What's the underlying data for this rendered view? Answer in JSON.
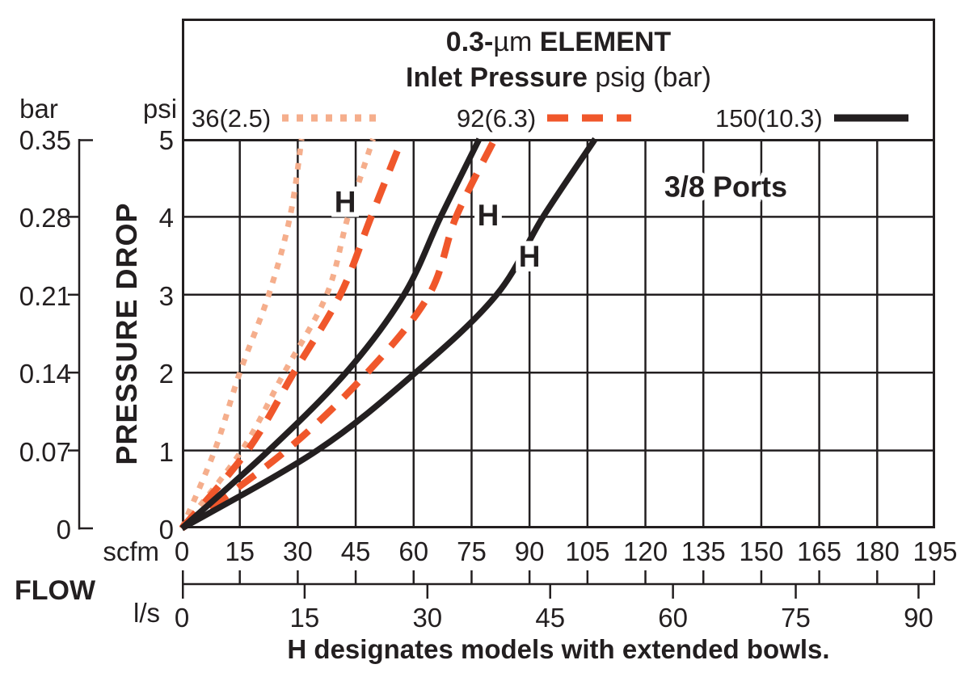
{
  "chart_box": {
    "title_part1": "0.3-",
    "title_mu": "µm",
    "title_part2": " ELEMENT",
    "subtitle_bold": "Inlet Pressure",
    "subtitle_rest": " psig (bar)"
  },
  "legend": {
    "items": [
      {
        "label": "36(2.5)",
        "style": "dotted",
        "color": "#F5AE8C",
        "swatch_len": 116
      },
      {
        "label": "92(6.3)",
        "style": "dashed",
        "color": "#F0572B",
        "swatch_len": 104
      },
      {
        "label": "150(10.3)",
        "style": "solid",
        "color": "#231F20",
        "swatch_len": 92
      }
    ]
  },
  "y_axis": {
    "bar_header": "bar",
    "psi_header": "psi",
    "axis_title": "PRESSURE DROP",
    "bar_labels": [
      "0.35",
      "0.28",
      "0.21",
      "0.14",
      "0.07",
      "0"
    ],
    "psi_labels": [
      "5",
      "4",
      "3",
      "2",
      "1",
      "0"
    ]
  },
  "x_axis": {
    "scfm_header": "scfm",
    "flow_label": "FLOW",
    "ls_header": "l/s"
  },
  "note": "H designates models with extended bowls.",
  "colors": {
    "ink": "#231F20",
    "dotted_series": "#F5AE8C",
    "dashed_series": "#F0572B"
  },
  "chart_data": {
    "type": "line",
    "title": "0.3-µm ELEMENT",
    "subtitle": "Inlet Pressure psig (bar)",
    "grid": true,
    "x_range_scfm": [
      0,
      195
    ],
    "x_ticks_scfm": [
      0,
      15,
      30,
      45,
      60,
      75,
      90,
      105,
      120,
      135,
      150,
      165,
      180,
      195
    ],
    "x_ticks_ls": [
      0,
      15,
      30,
      45,
      60,
      75,
      90
    ],
    "ls_to_scfm": 2.1189,
    "y_range_psi": [
      0,
      5
    ],
    "y_ticks_psi": [
      0,
      1,
      2,
      3,
      4,
      5
    ],
    "y_ticks_bar": [
      0,
      0.07,
      0.14,
      0.21,
      0.28,
      0.35
    ],
    "xlabel": "FLOW (scfm / l/s)",
    "ylabel": "PRESSURE DROP (psi / bar)",
    "legend_position": "top",
    "series": [
      {
        "name": "36(2.5)",
        "variant": "standard",
        "style": "dotted",
        "color": "#F5AE8C",
        "psi": [
          0,
          1,
          2,
          3,
          4,
          5
        ],
        "scfm": [
          0,
          8.5,
          15,
          22.5,
          28,
          31
        ]
      },
      {
        "name": "36(2.5)",
        "variant": "H extended bowl",
        "style": "dotted",
        "color": "#F5AE8C",
        "psi": [
          0,
          1,
          2,
          3,
          4,
          5
        ],
        "scfm": [
          0,
          15.5,
          26.5,
          37.5,
          43,
          49.5
        ]
      },
      {
        "name": "92(6.3)",
        "variant": "standard",
        "style": "dashed",
        "color": "#F0572B",
        "psi": [
          0,
          1,
          2,
          3,
          4,
          5
        ],
        "scfm": [
          0,
          17,
          29,
          41,
          49,
          57
        ]
      },
      {
        "name": "92(6.3)",
        "variant": "H extended bowl",
        "style": "dashed",
        "color": "#F0572B",
        "psi": [
          0,
          1,
          2,
          3,
          4,
          5
        ],
        "scfm": [
          0,
          27,
          48,
          64,
          71,
          81
        ]
      },
      {
        "name": "150(10.3)",
        "variant": "standard",
        "style": "solid",
        "color": "#231F20",
        "psi": [
          0,
          1,
          2,
          3,
          4,
          5
        ],
        "scfm": [
          0,
          22.5,
          42.5,
          57.5,
          67,
          77
        ]
      },
      {
        "name": "150(10.3)",
        "variant": "H extended bowl",
        "style": "solid",
        "color": "#231F20",
        "psi": [
          0,
          1,
          2,
          3,
          4,
          5
        ],
        "scfm": [
          0,
          35,
          60.5,
          81.5,
          93.5,
          107
        ]
      }
    ],
    "annotations": [
      {
        "text": "H",
        "scfm": 42.3,
        "psi": 4.19,
        "size": 37
      },
      {
        "text": "H",
        "scfm": 79.3,
        "psi": 4.02,
        "size": 37
      },
      {
        "text": "H",
        "scfm": 90.0,
        "psi": 3.49,
        "size": 37
      },
      {
        "text": "3/8 Ports",
        "scfm": 140.8,
        "psi": 4.39,
        "size": 36
      }
    ]
  }
}
